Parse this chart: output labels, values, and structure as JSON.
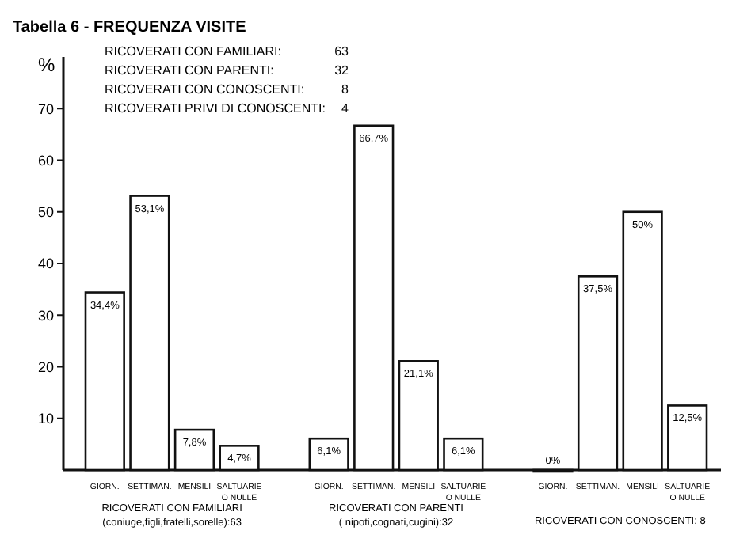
{
  "chart_data": {
    "type": "bar",
    "title": "Tabella 6 - FREQUENZA VISITE",
    "ylabel": "%",
    "categories": [
      "GIORN.",
      "SETTIMAN.",
      "MENSILI",
      "SALTUARIE\nO NULLE",
      null,
      "GIORN.",
      "SETTIMAN.",
      "MENSILI",
      "SALTUARIE\nO NULLE",
      null,
      "GIORN.",
      "SETTIMAN.",
      "MENSILI",
      "SALTUARIE\nO NULLE"
    ],
    "values": [
      34.4,
      53.1,
      7.8,
      4.7,
      null,
      6.1,
      66.7,
      21.1,
      6.1,
      null,
      0,
      37.5,
      50,
      12.5
    ],
    "value_labels": [
      "34,4%",
      "53,1%",
      "7,8%",
      "4,7%",
      null,
      "6,1%",
      "66,7%",
      "21,1%",
      "6,1%",
      null,
      "0%",
      "37,5%",
      "50%",
      "12,5%"
    ],
    "color": "#ffffff",
    "ylim": [
      0,
      80
    ],
    "yticks": [
      10,
      20,
      30,
      40,
      50,
      60,
      70
    ],
    "grid": false,
    "annotations": [
      "RICOVERATI CON FAMILIARI:\t63",
      "RICOVERATI CON PARENTI:\t32",
      "RICOVERATI CON CONOSCENTI:\t8",
      "RICOVERATI PRIVI DI CONOSCENTI:\t4",
      "RICOVERATI CON FAMILIARI\n(coniuge,figli,fratelli,sorelle):63",
      "RICOVERATI CON PARENTI\n( nipoti,cognati,cugini):32",
      "RICOVERATI CON CONOSCENTI: 8"
    ]
  }
}
